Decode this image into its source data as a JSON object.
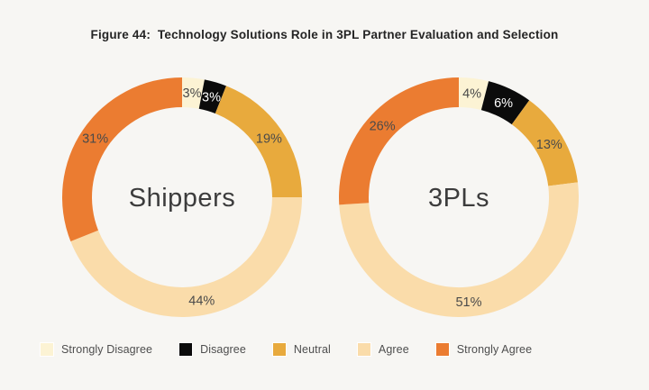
{
  "title": "Figure 44:  Technology Solutions Role in 3PL Partner Evaluation and Selection",
  "colors": {
    "background": "#f7f6f3",
    "title_text": "#242424",
    "value_label": "#4a4a4a",
    "value_label_on_dark": "#ffffff",
    "center_label": "#3c3c3c",
    "legend_text": "#4e4e4e"
  },
  "legend": {
    "items": [
      {
        "label": "Strongly Disagree",
        "color": "#fcf3d4"
      },
      {
        "label": "Disagree",
        "color": "#0b0b0b"
      },
      {
        "label": "Neutral",
        "color": "#e8aa3d"
      },
      {
        "label": "Agree",
        "color": "#fadcaa"
      },
      {
        "label": "Strongly Agree",
        "color": "#eb7c31"
      }
    ]
  },
  "chart_data": [
    {
      "type": "pie",
      "subtype": "donut",
      "center_label": "Shippers",
      "categories": [
        "Strongly Disagree",
        "Disagree",
        "Neutral",
        "Agree",
        "Strongly Agree"
      ],
      "values": [
        3,
        3,
        19,
        44,
        31
      ],
      "unit": "%",
      "value_labels": [
        "3%",
        "3%",
        "19%",
        "44%",
        "31%"
      ],
      "segment_colors": [
        "#fcf3d4",
        "#0b0b0b",
        "#e8aa3d",
        "#fadcaa",
        "#eb7c31"
      ],
      "label_colors": [
        "#4a4a4a",
        "#ffffff",
        "#4a4a4a",
        "#4a4a4a",
        "#4a4a4a"
      ],
      "start_angle_deg": 0,
      "direction": "clockwise",
      "legend_position": "bottom"
    },
    {
      "type": "pie",
      "subtype": "donut",
      "center_label": "3PLs",
      "categories": [
        "Strongly Disagree",
        "Disagree",
        "Neutral",
        "Agree",
        "Strongly Agree"
      ],
      "values": [
        4,
        6,
        13,
        51,
        26
      ],
      "unit": "%",
      "value_labels": [
        "4%",
        "6%",
        "13%",
        "51%",
        "26%"
      ],
      "segment_colors": [
        "#fcf3d4",
        "#0b0b0b",
        "#e8aa3d",
        "#fadcaa",
        "#eb7c31"
      ],
      "label_colors": [
        "#4a4a4a",
        "#ffffff",
        "#4a4a4a",
        "#4a4a4a",
        "#4a4a4a"
      ],
      "start_angle_deg": 0,
      "direction": "clockwise",
      "legend_position": "bottom"
    }
  ]
}
